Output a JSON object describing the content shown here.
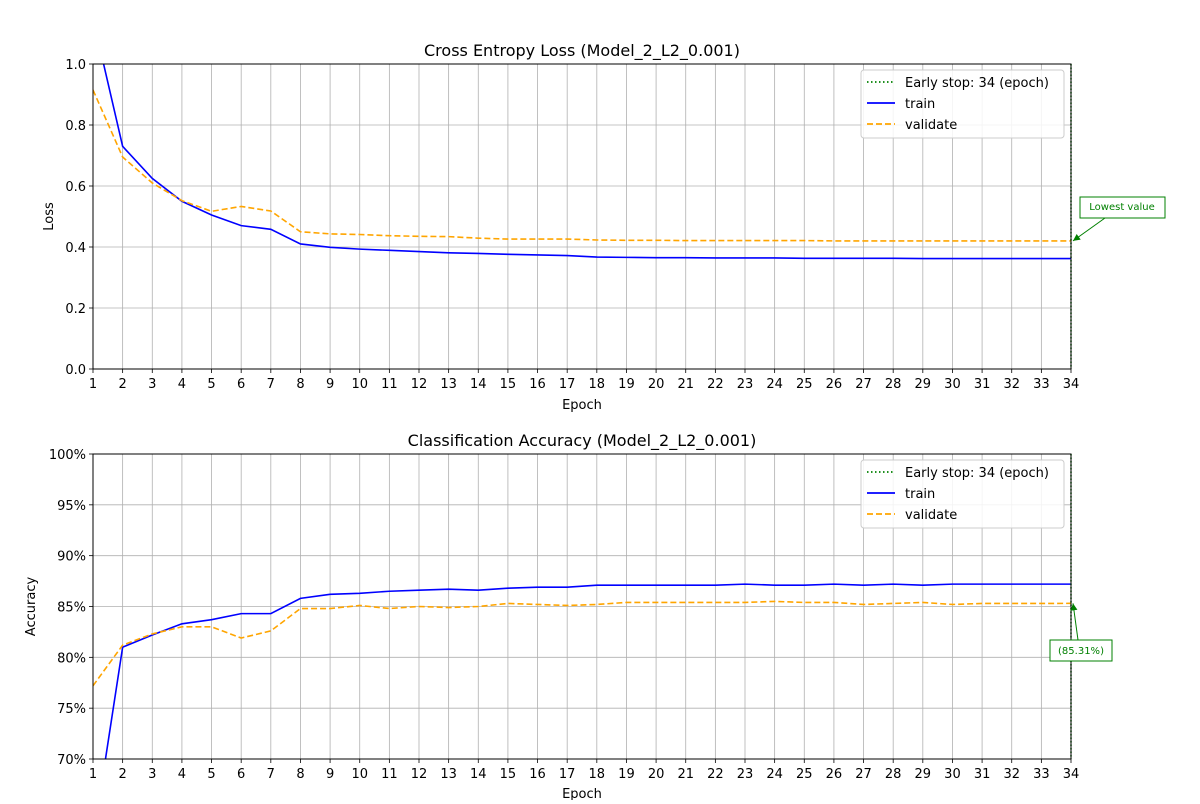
{
  "chart_data": [
    {
      "type": "line",
      "title": "Cross Entropy Loss (Model_2_L2_0.001)",
      "xlabel": "Epoch",
      "ylabel": "Loss",
      "xlim": [
        1,
        34
      ],
      "ylim": [
        0,
        1.0
      ],
      "yticks": [
        0.0,
        0.2,
        0.4,
        0.6,
        0.8,
        1.0
      ],
      "ytick_labels": [
        "0.0",
        "0.2",
        "0.4",
        "0.6",
        "0.8",
        "1.0"
      ],
      "grid": true,
      "legend_position": "top-right",
      "early_stop": {
        "epoch": 34,
        "label": "Early stop: 34 (epoch)",
        "color": "#008000"
      },
      "annotation": {
        "text": "Lowest value",
        "target_x": 34,
        "target_y": 0.42,
        "color": "#008000"
      },
      "x": [
        1,
        2,
        3,
        4,
        5,
        6,
        7,
        8,
        9,
        10,
        11,
        12,
        13,
        14,
        15,
        16,
        17,
        18,
        19,
        20,
        21,
        22,
        23,
        24,
        25,
        26,
        27,
        28,
        29,
        30,
        31,
        32,
        33,
        34
      ],
      "series": [
        {
          "name": "train",
          "color": "#0000ff",
          "dash": "solid",
          "values": [
            1.15,
            0.73,
            0.625,
            0.55,
            0.505,
            0.47,
            0.458,
            0.41,
            0.399,
            0.393,
            0.389,
            0.385,
            0.381,
            0.379,
            0.376,
            0.374,
            0.372,
            0.367,
            0.366,
            0.365,
            0.365,
            0.364,
            0.364,
            0.364,
            0.363,
            0.363,
            0.363,
            0.363,
            0.362,
            0.362,
            0.362,
            0.362,
            0.362,
            0.362
          ]
        },
        {
          "name": "validate",
          "color": "#ffa500",
          "dash": "dashed",
          "values": [
            0.915,
            0.695,
            0.61,
            0.552,
            0.517,
            0.533,
            0.518,
            0.45,
            0.443,
            0.441,
            0.437,
            0.435,
            0.434,
            0.429,
            0.426,
            0.426,
            0.426,
            0.423,
            0.422,
            0.422,
            0.421,
            0.421,
            0.421,
            0.421,
            0.421,
            0.42,
            0.42,
            0.42,
            0.42,
            0.42,
            0.42,
            0.42,
            0.42,
            0.42
          ]
        }
      ]
    },
    {
      "type": "line",
      "title": "Classification Accuracy (Model_2_L2_0.001)",
      "xlabel": "Epoch",
      "ylabel": "Accuracy",
      "xlim": [
        1,
        34
      ],
      "ylim": [
        70,
        100
      ],
      "yticks": [
        70,
        75,
        80,
        85,
        90,
        95,
        100
      ],
      "ytick_labels": [
        "70%",
        "75%",
        "80%",
        "85%",
        "90%",
        "95%",
        "100%"
      ],
      "grid": true,
      "legend_position": "top-right",
      "early_stop": {
        "epoch": 34,
        "label": "Early stop: 34 (epoch)",
        "color": "#008000"
      },
      "annotation": {
        "text": "(85.31%)",
        "target_x": 34,
        "target_y": 85.31,
        "color": "#008000"
      },
      "x": [
        1,
        2,
        3,
        4,
        5,
        6,
        7,
        8,
        9,
        10,
        11,
        12,
        13,
        14,
        15,
        16,
        17,
        18,
        19,
        20,
        21,
        22,
        23,
        24,
        25,
        26,
        27,
        28,
        29,
        30,
        31,
        32,
        33,
        34
      ],
      "series": [
        {
          "name": "train",
          "color": "#0000ff",
          "dash": "solid",
          "values": [
            62.0,
            81.0,
            82.2,
            83.3,
            83.7,
            84.3,
            84.3,
            85.8,
            86.2,
            86.3,
            86.5,
            86.6,
            86.7,
            86.6,
            86.8,
            86.9,
            86.9,
            87.1,
            87.1,
            87.1,
            87.1,
            87.1,
            87.2,
            87.1,
            87.1,
            87.2,
            87.1,
            87.2,
            87.1,
            87.2,
            87.2,
            87.2,
            87.2,
            87.2
          ]
        },
        {
          "name": "validate",
          "color": "#ffa500",
          "dash": "dashed",
          "values": [
            77.2,
            81.2,
            82.3,
            83.0,
            83.0,
            81.9,
            82.6,
            84.8,
            84.8,
            85.1,
            84.8,
            85.0,
            84.9,
            85.0,
            85.3,
            85.2,
            85.1,
            85.2,
            85.4,
            85.4,
            85.4,
            85.4,
            85.4,
            85.5,
            85.4,
            85.4,
            85.2,
            85.3,
            85.4,
            85.2,
            85.3,
            85.3,
            85.3,
            85.31
          ]
        }
      ]
    }
  ]
}
